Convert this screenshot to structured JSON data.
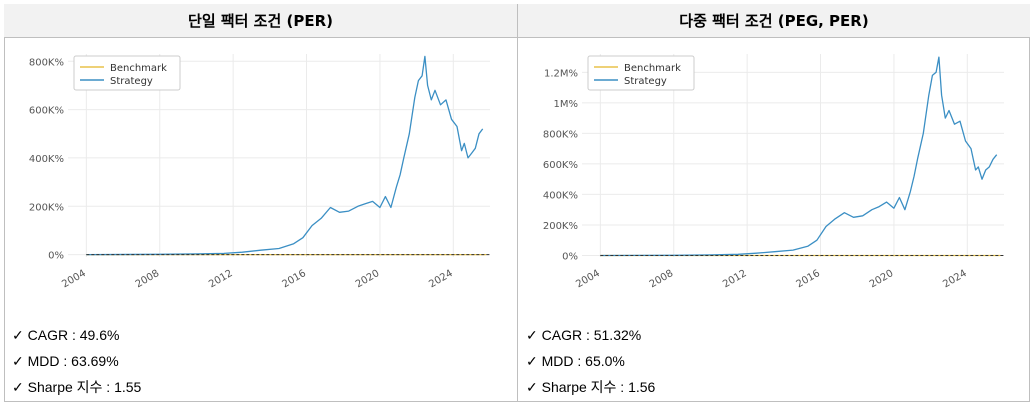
{
  "panels": [
    {
      "title": "단일 팩터 조건 (PER)",
      "metrics": [
        "✓ CAGR : 49.6%",
        "✓ MDD : 63.69%",
        "✓ Sharpe 지수 : 1.55"
      ]
    },
    {
      "title": "다중 팩터 조건 (PEG, PER)",
      "metrics": [
        "✓ CAGR : 51.32%",
        "✓ MDD : 65.0%",
        "✓ Sharpe 지수 : 1.56"
      ]
    }
  ],
  "colors": {
    "strategy": "#3b8fc4",
    "benchmark": "#e8c24a",
    "zero_line": "#333333",
    "grid": "#ebebeb",
    "tick_text": "#555555"
  },
  "chart_data": [
    {
      "type": "line",
      "legend": [
        "Benchmark",
        "Strategy"
      ],
      "legend_position": "top-left",
      "grid": true,
      "xlim": [
        2003.0,
        2026.0
      ],
      "ylim": [
        -10000,
        830000
      ],
      "x_ticks": [
        2004,
        2008,
        2012,
        2016,
        2020,
        2024
      ],
      "y_ticks": [
        0,
        200000,
        400000,
        600000,
        800000
      ],
      "y_tick_labels": [
        "0%",
        "200K%",
        "400K%",
        "600K%",
        "800K%"
      ],
      "series": [
        {
          "name": "Benchmark",
          "x": [
            2004.0,
            2025.8
          ],
          "y": [
            0,
            0
          ]
        },
        {
          "name": "Strategy",
          "x": [
            2004.0,
            2008.0,
            2010.0,
            2011.5,
            2012.5,
            2013.5,
            2014.5,
            2015.3,
            2015.8,
            2016.3,
            2016.8,
            2017.3,
            2017.8,
            2018.3,
            2018.8,
            2019.2,
            2019.6,
            2020.0,
            2020.3,
            2020.6,
            2020.9,
            2021.1,
            2021.3,
            2021.6,
            2021.9,
            2022.1,
            2022.3,
            2022.45,
            2022.6,
            2022.8,
            2023.0,
            2023.3,
            2023.6,
            2023.9,
            2024.2,
            2024.45,
            2024.6,
            2024.8,
            2025.0,
            2025.2,
            2025.4,
            2025.6
          ],
          "y": [
            0,
            1000,
            3000,
            5000,
            10000,
            18000,
            25000,
            45000,
            70000,
            120000,
            150000,
            195000,
            175000,
            180000,
            200000,
            210000,
            220000,
            195000,
            240000,
            195000,
            280000,
            330000,
            400000,
            500000,
            650000,
            720000,
            740000,
            820000,
            700000,
            640000,
            680000,
            620000,
            640000,
            560000,
            530000,
            430000,
            460000,
            400000,
            420000,
            440000,
            500000,
            520000
          ]
        }
      ]
    },
    {
      "type": "line",
      "legend": [
        "Benchmark",
        "Strategy"
      ],
      "legend_position": "top-left",
      "grid": true,
      "xlim": [
        2003.0,
        2026.0
      ],
      "ylim": [
        -10000,
        1320000
      ],
      "x_ticks": [
        2004,
        2008,
        2012,
        2016,
        2020,
        2024
      ],
      "y_ticks": [
        0,
        200000,
        400000,
        600000,
        800000,
        1000000,
        1200000
      ],
      "y_tick_labels": [
        "0%",
        "200K%",
        "400K%",
        "600K%",
        "800K%",
        "1M%",
        "1.2M%"
      ],
      "series": [
        {
          "name": "Benchmark",
          "x": [
            2004.0,
            2025.8
          ],
          "y": [
            0,
            0
          ]
        },
        {
          "name": "Strategy",
          "x": [
            2004.0,
            2008.0,
            2010.0,
            2011.5,
            2012.5,
            2013.5,
            2014.5,
            2015.3,
            2015.8,
            2016.3,
            2016.8,
            2017.3,
            2017.8,
            2018.3,
            2018.8,
            2019.2,
            2019.6,
            2020.0,
            2020.3,
            2020.6,
            2020.9,
            2021.1,
            2021.3,
            2021.6,
            2021.9,
            2022.1,
            2022.3,
            2022.45,
            2022.6,
            2022.8,
            2023.0,
            2023.3,
            2023.6,
            2023.9,
            2024.2,
            2024.45,
            2024.6,
            2024.8,
            2025.0,
            2025.2,
            2025.4,
            2025.6
          ],
          "y": [
            0,
            1000,
            4000,
            8000,
            15000,
            25000,
            35000,
            60000,
            100000,
            190000,
            240000,
            280000,
            250000,
            260000,
            300000,
            320000,
            350000,
            310000,
            380000,
            300000,
            420000,
            520000,
            640000,
            800000,
            1050000,
            1180000,
            1200000,
            1300000,
            1050000,
            900000,
            950000,
            860000,
            880000,
            750000,
            700000,
            560000,
            580000,
            500000,
            560000,
            580000,
            630000,
            660000
          ]
        }
      ]
    }
  ]
}
